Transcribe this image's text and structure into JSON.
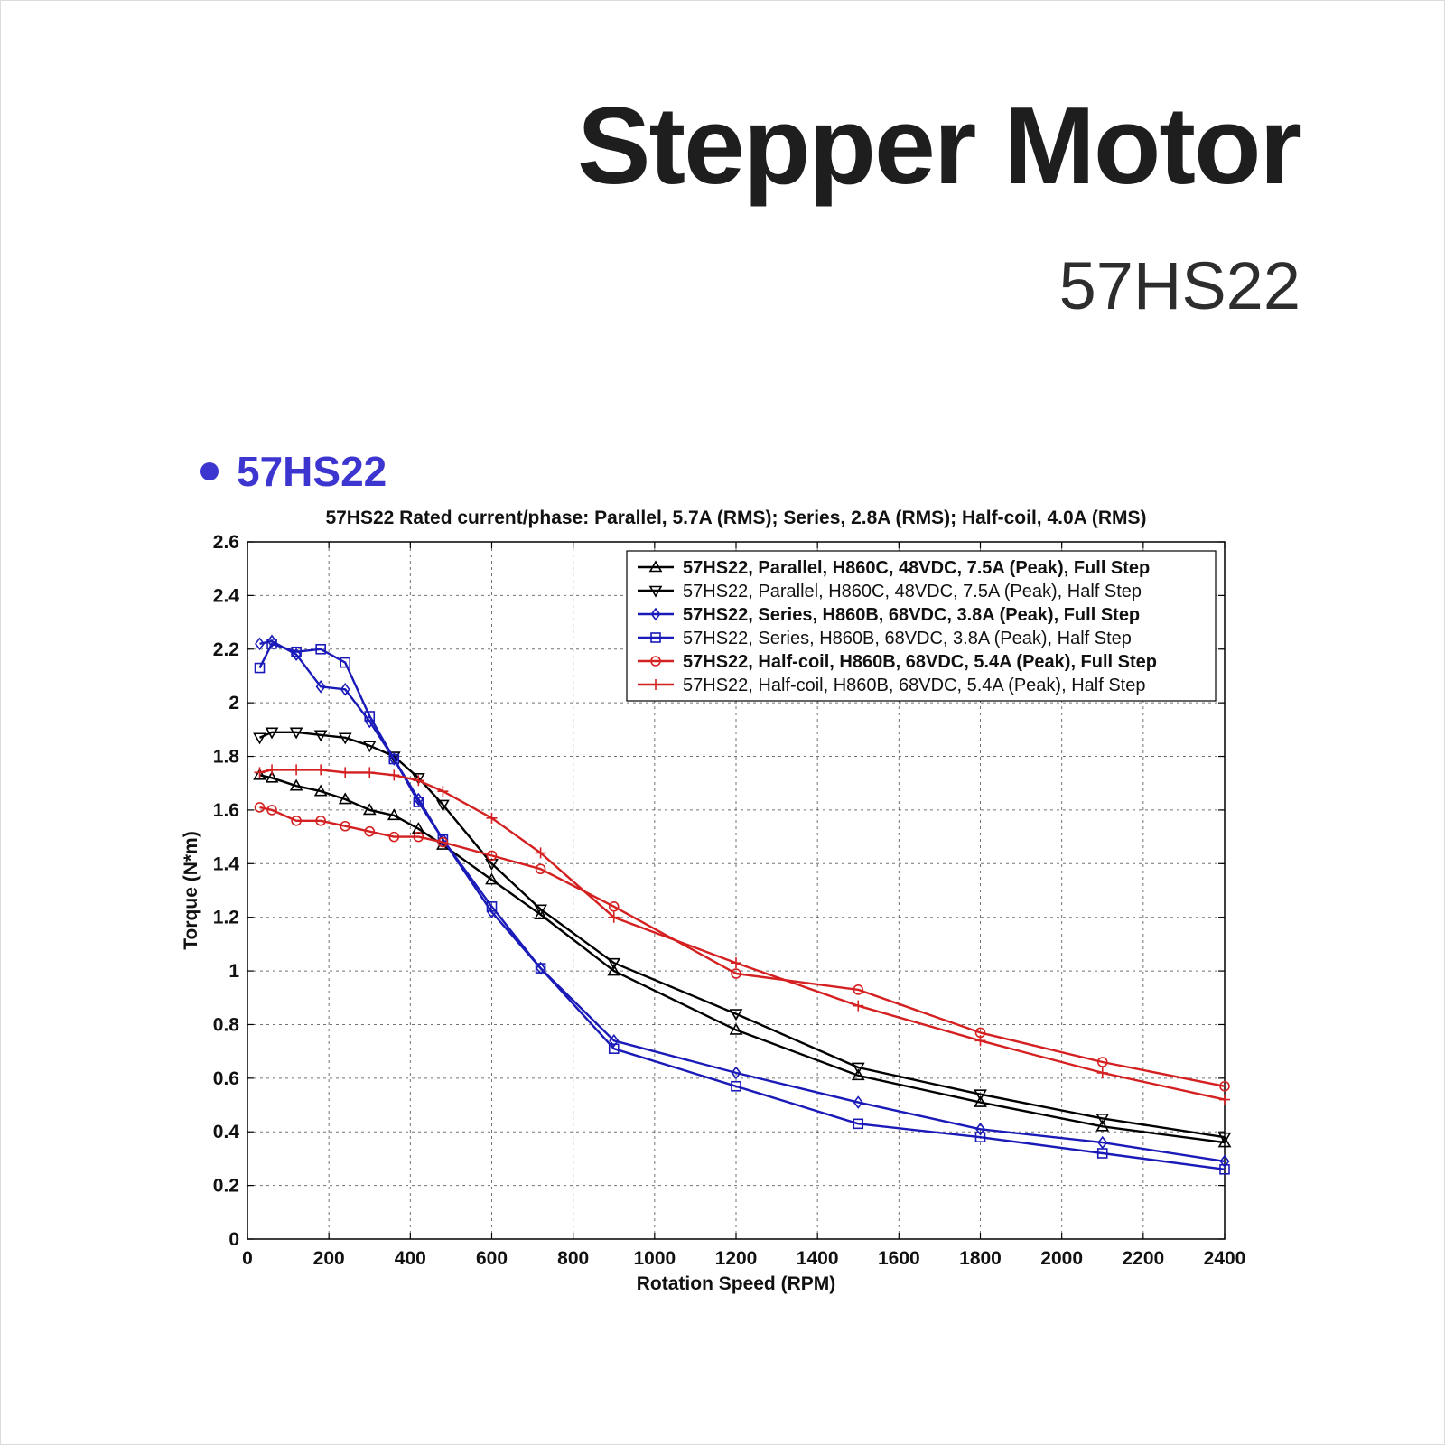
{
  "header": {
    "title": "Stepper Motor",
    "subtitle": "57HS22"
  },
  "section": {
    "label": "57HS22",
    "accent_color": "#3d35cf"
  },
  "chart_data": {
    "type": "line",
    "title": "57HS22 Rated current/phase: Parallel, 5.7A (RMS); Series, 2.8A (RMS); Half-coil, 4.0A (RMS)",
    "xlabel": "Rotation Speed (RPM)",
    "ylabel": "Torque (N*m)",
    "xlim": [
      0,
      2400
    ],
    "ylim": [
      0,
      2.6
    ],
    "x_ticks": [
      "0",
      "200",
      "400",
      "600",
      "800",
      "1000",
      "1200",
      "1400",
      "1600",
      "1800",
      "2000",
      "2200",
      "2400"
    ],
    "y_ticks": [
      "0",
      "0.2",
      "0.4",
      "0.6",
      "0.8",
      "1",
      "1.2",
      "1.4",
      "1.6",
      "1.8",
      "2",
      "2.2",
      "2.4",
      "2.6"
    ],
    "grid": true,
    "legend_position": "top-right",
    "series": [
      {
        "name": "57HS22, Parallel, H860C, 48VDC, 7.5A (Peak), Full Step",
        "color": "#000000",
        "marker": "triangle-up",
        "x": [
          30,
          60,
          120,
          180,
          240,
          300,
          360,
          420,
          480,
          600,
          720,
          900,
          1200,
          1500,
          1800,
          2100,
          2400
        ],
        "y": [
          1.73,
          1.72,
          1.69,
          1.67,
          1.64,
          1.6,
          1.58,
          1.53,
          1.47,
          1.34,
          1.21,
          1.0,
          0.78,
          0.61,
          0.51,
          0.42,
          0.36
        ]
      },
      {
        "name": "57HS22, Parallel, H860C, 48VDC, 7.5A (Peak), Half Step",
        "color": "#000000",
        "marker": "triangle-down",
        "x": [
          30,
          60,
          120,
          180,
          240,
          300,
          360,
          420,
          480,
          600,
          720,
          900,
          1200,
          1500,
          1800,
          2100,
          2400
        ],
        "y": [
          1.87,
          1.89,
          1.89,
          1.88,
          1.87,
          1.84,
          1.8,
          1.72,
          1.62,
          1.4,
          1.23,
          1.03,
          0.84,
          0.64,
          0.54,
          0.45,
          0.38
        ]
      },
      {
        "name": "57HS22, Series, H860B, 68VDC, 3.8A (Peak), Full Step",
        "color": "#1a1ab8",
        "marker": "diamond",
        "x": [
          30,
          60,
          120,
          180,
          240,
          300,
          360,
          420,
          480,
          600,
          720,
          900,
          1200,
          1500,
          1800,
          2100,
          2400
        ],
        "y": [
          2.22,
          2.23,
          2.18,
          2.06,
          2.05,
          1.93,
          1.79,
          1.64,
          1.49,
          1.22,
          1.01,
          0.74,
          0.62,
          0.51,
          0.41,
          0.36,
          0.29
        ]
      },
      {
        "name": "57HS22, Series, H860B, 68VDC, 3.8A (Peak), Half Step",
        "color": "#1a1ab8",
        "marker": "square",
        "x": [
          30,
          60,
          120,
          180,
          240,
          300,
          360,
          420,
          480,
          600,
          720,
          900,
          1200,
          1500,
          1800,
          2100,
          2400
        ],
        "y": [
          2.13,
          2.22,
          2.19,
          2.2,
          2.15,
          1.95,
          1.79,
          1.63,
          1.49,
          1.24,
          1.01,
          0.71,
          0.57,
          0.43,
          0.38,
          0.32,
          0.26
        ]
      },
      {
        "name": "57HS22, Half-coil, H860B, 68VDC, 5.4A (Peak), Full Step",
        "color": "#d42020",
        "marker": "circle",
        "x": [
          30,
          60,
          120,
          180,
          240,
          300,
          360,
          420,
          480,
          600,
          720,
          900,
          1200,
          1500,
          1800,
          2100,
          2400
        ],
        "y": [
          1.61,
          1.6,
          1.56,
          1.56,
          1.54,
          1.52,
          1.5,
          1.5,
          1.48,
          1.43,
          1.38,
          1.24,
          0.99,
          0.93,
          0.77,
          0.66,
          0.57
        ]
      },
      {
        "name": "57HS22, Half-coil, H860B, 68VDC, 5.4A (Peak), Half Step",
        "color": "#d42020",
        "marker": "plus",
        "x": [
          30,
          60,
          120,
          180,
          240,
          300,
          360,
          420,
          480,
          600,
          720,
          900,
          1200,
          1500,
          1800,
          2100,
          2400
        ],
        "y": [
          1.74,
          1.75,
          1.75,
          1.75,
          1.74,
          1.74,
          1.73,
          1.71,
          1.67,
          1.57,
          1.44,
          1.2,
          1.03,
          0.87,
          0.74,
          0.62,
          0.52
        ]
      }
    ]
  }
}
